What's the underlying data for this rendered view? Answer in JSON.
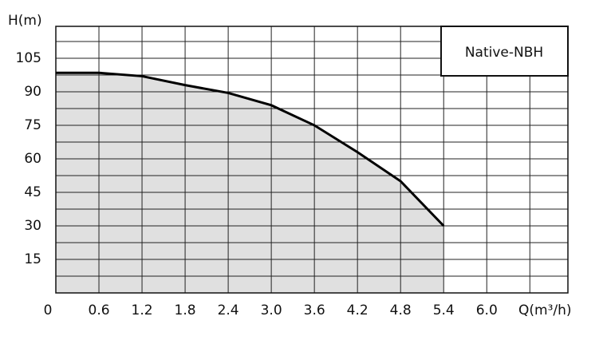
{
  "chart_data": {
    "type": "area",
    "y_label": "H(m)",
    "x_label": "Q(m³/h)",
    "series_label": "Native-NBH",
    "x": [
      0,
      0.6,
      1.2,
      1.8,
      2.4,
      3.0,
      3.6,
      4.2,
      4.8,
      5.4
    ],
    "values": [
      98.5,
      98.5,
      97,
      93,
      89.5,
      84,
      75,
      63,
      50,
      30
    ],
    "color": "#e0e0e0",
    "line_color": "#000000",
    "xlim": [
      0,
      7.13
    ],
    "ylim": [
      0,
      119.3
    ],
    "xticks": [
      0,
      0.6,
      1.2,
      1.8,
      2.4,
      {
        "value": 3.0,
        "label": "3.0"
      },
      3.6,
      4.2,
      4.8,
      5.4,
      {
        "value": 6.0,
        "label": "6.0"
      }
    ],
    "x_minor_ticks": [
      6.6
    ],
    "yticks": [
      15,
      30,
      45,
      60,
      75,
      90,
      105
    ],
    "y_minor_ticks": [
      7.5,
      22.5,
      37.5,
      52.5,
      67.5,
      82.5,
      97.5,
      112.5
    ],
    "grid": true
  }
}
